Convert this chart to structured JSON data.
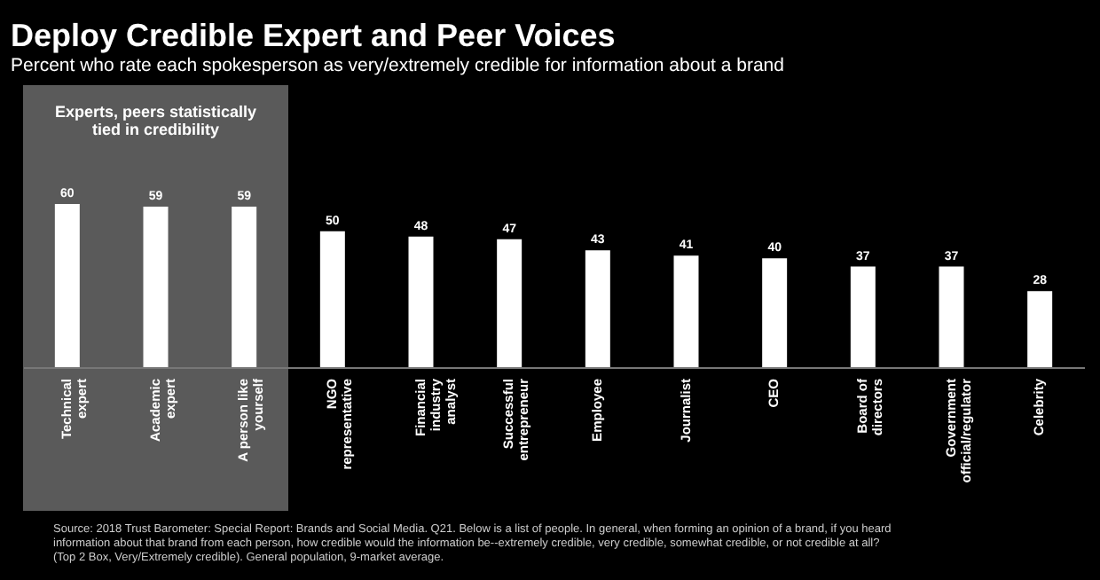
{
  "chart_data": {
    "type": "bar",
    "title": "Deploy Credible Expert and Peer Voices",
    "subtitle": "Percent who rate each spokesperson as very/extremely credible for information about a brand",
    "categories": [
      "Technical expert",
      "Academic expert",
      "A person like yourself",
      "NGO representative",
      "Financial industry analyst",
      "Successful entrepreneur",
      "Employee",
      "Journalist",
      "CEO",
      "Board of directors",
      "Government official/regulator",
      "Celebrity"
    ],
    "values": [
      60,
      59,
      59,
      50,
      48,
      47,
      43,
      41,
      40,
      37,
      37,
      28
    ],
    "color": "#ffffff",
    "data_labels": true,
    "bands": [
      {
        "axis": "x",
        "from": "Technical expert",
        "to": "A person like yourself",
        "label": "Experts, peers statistically tied in credibility",
        "color": "#5a5a5a"
      }
    ],
    "annotations": [
      "Source: 2018 Trust Barometer: Special Report: Brands and Social Media. Q21. Below is a list of people. In general, when forming an opinion of a brand, if you heard information about that brand from each person, how credible would the information be--extremely credible, very credible, somewhat credible, or not credible at all? (Top 2 Box, Very/Extremely credible). General population, 9-market average."
    ]
  }
}
